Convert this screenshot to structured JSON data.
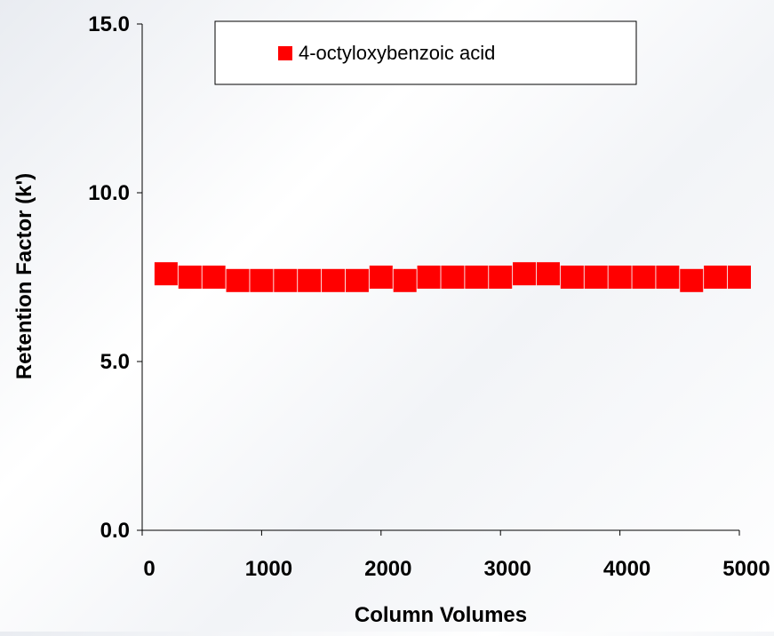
{
  "chart_data": {
    "type": "scatter",
    "title": "",
    "xlabel": "Column Volumes",
    "ylabel": "Retention Factor (k')",
    "xlim": [
      0,
      5000
    ],
    "ylim": [
      0,
      15
    ],
    "x_ticks": [
      "0",
      "1000",
      "2000",
      "3000",
      "4000",
      "5000"
    ],
    "y_ticks": [
      "0.0",
      "5.0",
      "10.0",
      "15.0"
    ],
    "grid": false,
    "legend_position": "top-right",
    "series": [
      {
        "name": "4-octyloxybenzoic acid",
        "color": "#ff0000",
        "marker": "square",
        "x": [
          200,
          400,
          600,
          800,
          1000,
          1200,
          1400,
          1600,
          1800,
          2000,
          2200,
          2400,
          2600,
          2800,
          3000,
          3200,
          3400,
          3600,
          3800,
          4000,
          4200,
          4400,
          4600,
          4800,
          5000
        ],
        "y": [
          7.6,
          7.5,
          7.5,
          7.4,
          7.4,
          7.4,
          7.4,
          7.4,
          7.4,
          7.5,
          7.4,
          7.5,
          7.5,
          7.5,
          7.5,
          7.6,
          7.6,
          7.5,
          7.5,
          7.5,
          7.5,
          7.5,
          7.4,
          7.5,
          7.5
        ]
      }
    ]
  }
}
